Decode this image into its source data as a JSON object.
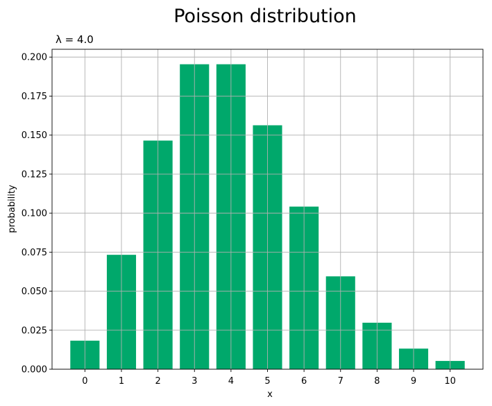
{
  "chart_data": {
    "type": "bar",
    "title": "Poisson distribution",
    "subtitle": "λ = 4.0",
    "xlabel": "x",
    "ylabel": "probability",
    "categories": [
      "0",
      "1",
      "2",
      "3",
      "4",
      "5",
      "6",
      "7",
      "8",
      "9",
      "10"
    ],
    "x": [
      0,
      1,
      2,
      3,
      4,
      5,
      6,
      7,
      8,
      9,
      10
    ],
    "values": [
      0.0183,
      0.0733,
      0.1465,
      0.1954,
      0.1954,
      0.1563,
      0.1042,
      0.0595,
      0.0298,
      0.0132,
      0.0053
    ],
    "ylim": [
      0,
      0.205
    ],
    "xlim": [
      -0.9,
      10.9
    ],
    "yticks": [
      0.0,
      0.025,
      0.05,
      0.075,
      0.1,
      0.125,
      0.15,
      0.175,
      0.2
    ],
    "ytick_labels": [
      "0.000",
      "0.025",
      "0.050",
      "0.075",
      "0.100",
      "0.125",
      "0.150",
      "0.175",
      "0.200"
    ],
    "grid": true,
    "bar_color": "#00a86b"
  }
}
